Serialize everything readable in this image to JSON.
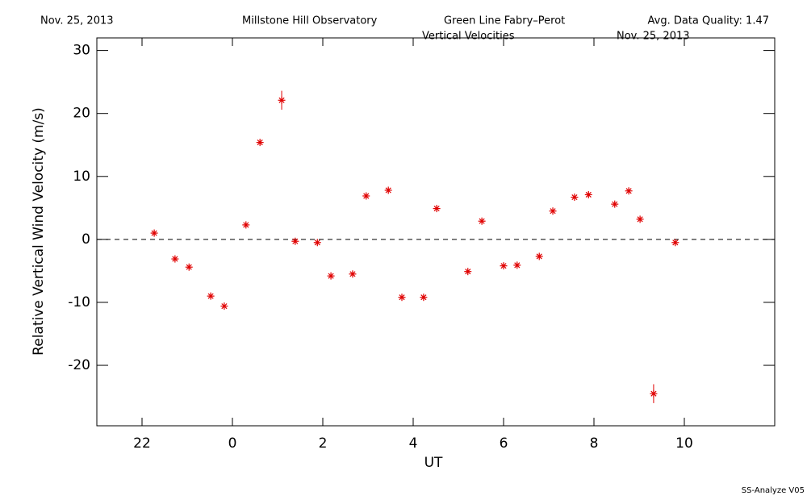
{
  "chart_data": {
    "type": "scatter",
    "header": [
      "Nov. 25, 2013",
      "Millstone Hill Observatory",
      "Green Line Fabry–Perot",
      "Avg. Data Quality: 1.47"
    ],
    "title": "Vertical Velocities",
    "title_date": "Nov. 25, 2013",
    "xlabel": "UT",
    "ylabel": "Relative Vertical Wind Velocity (m/s)",
    "footer": "SS-Analyze V05",
    "xlim": [
      -3,
      12
    ],
    "ylim": [
      -29.6,
      32
    ],
    "xticks": [
      {
        "value": -2,
        "label": "22"
      },
      0,
      2,
      4,
      6,
      8,
      10
    ],
    "yticks": [
      -20,
      -10,
      0,
      10,
      20,
      30
    ],
    "reference_line": 0,
    "series": [
      {
        "color": "#e00000",
        "x": [
          -1.73,
          -1.27,
          -0.96,
          -0.48,
          -0.18,
          0.3,
          0.61,
          1.09,
          1.39,
          1.88,
          2.18,
          2.66,
          2.96,
          3.45,
          3.75,
          4.23,
          4.52,
          5.21,
          5.52,
          6.0,
          6.3,
          6.79,
          7.09,
          7.57,
          7.88,
          8.46,
          8.77,
          9.02,
          9.32,
          9.8
        ],
        "values": [
          1.0,
          -3.1,
          -4.4,
          -9.0,
          -10.6,
          2.3,
          15.4,
          22.1,
          -0.3,
          -0.5,
          -5.8,
          -5.5,
          6.9,
          7.8,
          -9.2,
          -9.2,
          4.9,
          -5.1,
          2.9,
          -4.2,
          -4.1,
          -2.7,
          4.5,
          6.7,
          7.1,
          5.6,
          7.7,
          3.2,
          -24.5,
          -0.5
        ],
        "errors": [
          0.3,
          0.3,
          0.3,
          0.3,
          0.3,
          0.3,
          0.3,
          1.5,
          0.3,
          0.3,
          0.3,
          0.3,
          0.3,
          0.3,
          0.3,
          0.3,
          0.3,
          0.3,
          0.3,
          0.3,
          0.3,
          0.3,
          0.3,
          0.3,
          0.3,
          0.3,
          0.3,
          0.3,
          1.5,
          0.3
        ]
      }
    ]
  }
}
